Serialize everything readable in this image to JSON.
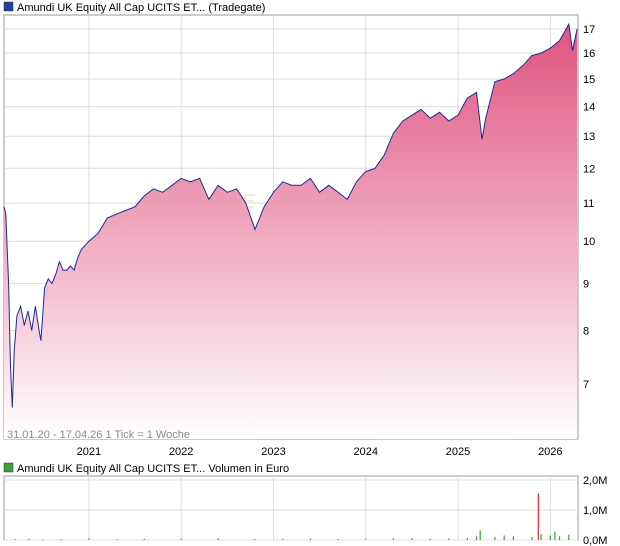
{
  "colors": {
    "price_line": "#1c2d8f",
    "fill_top": "#e0527f",
    "fill_bottom": "#ffffff",
    "grid": "#dcdcdc",
    "frame": "#999999",
    "legend_price_marker": "#1f3f9f",
    "legend_volume_marker": "#3aa03a",
    "volume_bar": "#3aa03a",
    "volume_spike": "#d83030"
  },
  "chart_data": [
    {
      "type": "area",
      "legend": "Amundi UK Equity All Cap UCITS ET... (Tradegate)",
      "info": "31.01.20 - 17.04.26   1 Tick = 1 Woche",
      "watermark": "AKTIE",
      "x_ticks": [
        "2021",
        "2022",
        "2023",
        "2024",
        "2025",
        "2026"
      ],
      "x_tick_years": [
        2021,
        2022,
        2023,
        2024,
        2025,
        2026
      ],
      "xlim": [
        "2020-01-31",
        "2026-04-17"
      ],
      "y_ticks": [
        "7",
        "8",
        "9",
        "10",
        "11",
        "12",
        "13",
        "14",
        "15",
        "16",
        "17"
      ],
      "y_tick_values": [
        7,
        8,
        9,
        10,
        11,
        12,
        13,
        14,
        15,
        16,
        17
      ],
      "y_scale": "log",
      "ylim": [
        6.1,
        17.6
      ],
      "grid": true,
      "series": [
        {
          "name": "Amundi UK Equity All Cap UCITS ET... (Tradegate)",
          "x": [
            2020.08,
            2020.1,
            2020.13,
            2020.15,
            2020.17,
            2020.19,
            2020.22,
            2020.26,
            2020.3,
            2020.34,
            2020.38,
            2020.42,
            2020.46,
            2020.48,
            2020.52,
            2020.56,
            2020.6,
            2020.64,
            2020.68,
            2020.72,
            2020.76,
            2020.8,
            2020.84,
            2020.88,
            2020.92,
            2021.0,
            2021.1,
            2021.2,
            2021.3,
            2021.4,
            2021.5,
            2021.6,
            2021.7,
            2021.8,
            2021.9,
            2022.0,
            2022.1,
            2022.2,
            2022.3,
            2022.4,
            2022.5,
            2022.6,
            2022.7,
            2022.8,
            2022.9,
            2023.0,
            2023.1,
            2023.2,
            2023.3,
            2023.4,
            2023.5,
            2023.6,
            2023.7,
            2023.8,
            2023.9,
            2024.0,
            2024.1,
            2024.2,
            2024.3,
            2024.4,
            2024.5,
            2024.6,
            2024.7,
            2024.8,
            2024.9,
            2025.0,
            2025.1,
            2025.2,
            2025.26,
            2025.3,
            2025.4,
            2025.5,
            2025.6,
            2025.7,
            2025.8,
            2025.9,
            2026.0,
            2026.1,
            2026.2,
            2026.24,
            2026.29
          ],
          "values": [
            10.9,
            10.7,
            9.0,
            7.3,
            6.6,
            7.6,
            8.3,
            8.5,
            8.1,
            8.4,
            8.0,
            8.5,
            8.0,
            7.8,
            8.9,
            9.1,
            9.0,
            9.2,
            9.5,
            9.3,
            9.3,
            9.4,
            9.3,
            9.6,
            9.8,
            10.0,
            10.2,
            10.6,
            10.7,
            10.8,
            10.9,
            11.2,
            11.4,
            11.3,
            11.5,
            11.7,
            11.6,
            11.7,
            11.1,
            11.5,
            11.3,
            11.4,
            11.0,
            10.3,
            10.9,
            11.3,
            11.6,
            11.5,
            11.5,
            11.7,
            11.3,
            11.5,
            11.3,
            11.1,
            11.6,
            11.9,
            12.0,
            12.4,
            13.1,
            13.5,
            13.7,
            13.9,
            13.6,
            13.8,
            13.5,
            13.7,
            14.3,
            14.5,
            12.9,
            13.6,
            14.9,
            15.0,
            15.2,
            15.5,
            15.9,
            16.0,
            16.2,
            16.5,
            17.2,
            16.1,
            17.0
          ]
        }
      ]
    },
    {
      "type": "bar",
      "legend": "Amundi UK Equity All Cap UCITS ET... Volumen in Euro",
      "x_ticks": [],
      "y_ticks": [
        "0,0M",
        "1,0M",
        "2,0M"
      ],
      "y_tick_values": [
        0,
        1,
        2
      ],
      "ylim": [
        0,
        2.0
      ],
      "grid": true,
      "unit": "M EUR",
      "series": [
        {
          "name": "Volumen in Euro",
          "x": [
            2020.2,
            2020.35,
            2020.5,
            2020.7,
            2021.0,
            2021.3,
            2021.6,
            2022.0,
            2022.4,
            2022.8,
            2023.1,
            2023.4,
            2023.7,
            2024.0,
            2024.3,
            2024.5,
            2024.7,
            2024.9,
            2025.1,
            2025.2,
            2025.24,
            2025.4,
            2025.5,
            2025.6,
            2025.8,
            2025.87,
            2025.9,
            2026.0,
            2026.05,
            2026.1,
            2026.2
          ],
          "values": [
            0.03,
            0.04,
            0.02,
            0.03,
            0.05,
            0.03,
            0.04,
            0.04,
            0.05,
            0.03,
            0.04,
            0.05,
            0.03,
            0.04,
            0.05,
            0.06,
            0.04,
            0.05,
            0.08,
            0.12,
            0.32,
            0.1,
            0.15,
            0.12,
            0.1,
            1.55,
            0.2,
            0.15,
            0.28,
            0.12,
            0.18
          ]
        }
      ]
    }
  ]
}
